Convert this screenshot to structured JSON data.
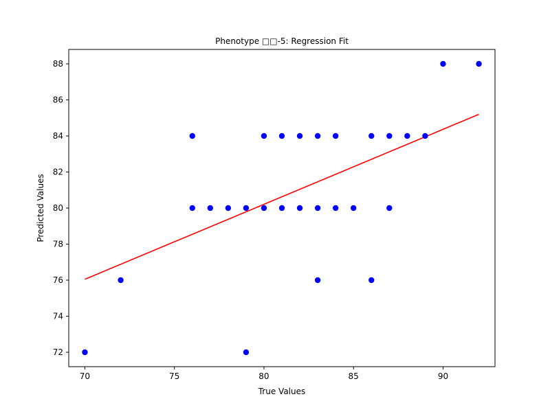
{
  "chart_data": {
    "type": "scatter",
    "title": "Phenotype  □□-5: Regression Fit",
    "xlabel": "True Values",
    "ylabel": "Predicted Values",
    "xlim": [
      69.1,
      92.9
    ],
    "ylim": [
      71.2,
      88.8
    ],
    "xticks": [
      70,
      75,
      80,
      85,
      90
    ],
    "yticks": [
      72,
      74,
      76,
      78,
      80,
      82,
      84,
      86,
      88
    ],
    "grid": false,
    "legend": "none",
    "series": [
      {
        "kind": "points",
        "color": "#0000ff",
        "x": [
          70,
          72,
          76,
          76,
          77,
          78,
          79,
          79,
          80,
          80,
          81,
          81,
          82,
          82,
          83,
          83,
          83,
          84,
          84,
          85,
          86,
          86,
          87,
          87,
          88,
          89,
          90,
          92
        ],
        "y": [
          72,
          76,
          84,
          80,
          80,
          80,
          80,
          72,
          84,
          80,
          84,
          80,
          84,
          80,
          84,
          80,
          76,
          84,
          80,
          80,
          84,
          76,
          84,
          80,
          84,
          84,
          88,
          88
        ]
      },
      {
        "kind": "fit-line",
        "color": "#ff0000",
        "x": [
          70,
          92
        ],
        "y": [
          76.05,
          85.2
        ]
      }
    ]
  }
}
